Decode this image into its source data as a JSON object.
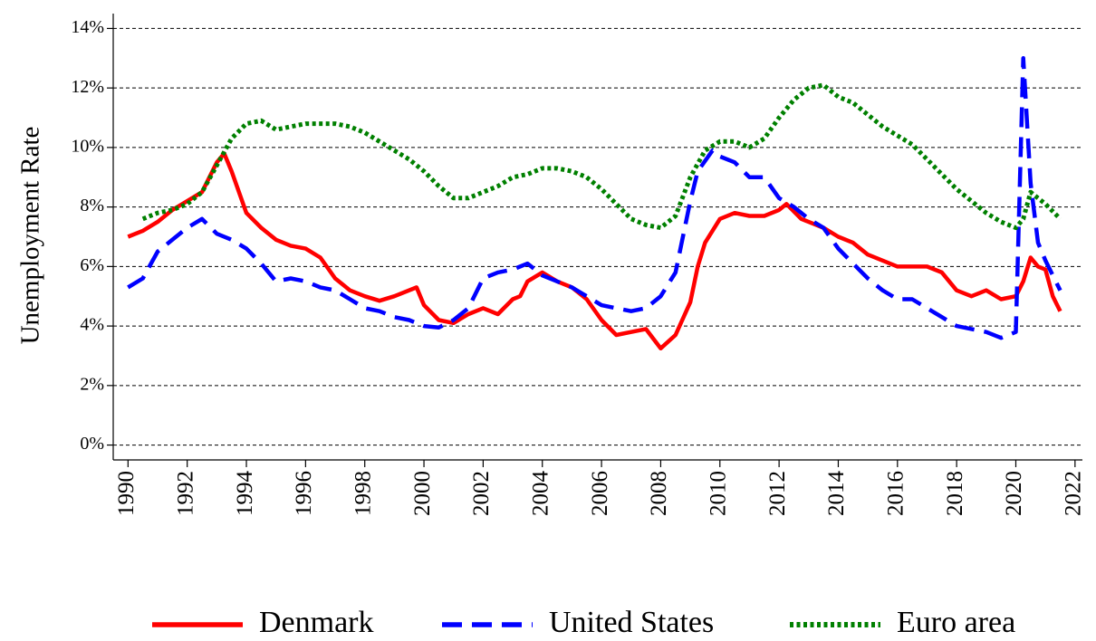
{
  "chart_data": {
    "type": "line",
    "y_label": "Unemployment Rate",
    "xlim": [
      1989.5,
      2022.25
    ],
    "xticks": [
      1990,
      1992,
      1994,
      1996,
      1998,
      2000,
      2002,
      2004,
      2006,
      2008,
      2010,
      2012,
      2014,
      2016,
      2018,
      2020,
      2022
    ],
    "ylim": [
      -0.5,
      14.5
    ],
    "yticks": [
      {
        "value": 0,
        "label": "0%"
      },
      {
        "value": 2,
        "label": "2%"
      },
      {
        "value": 4,
        "label": "4%"
      },
      {
        "value": 6,
        "label": "6%"
      },
      {
        "value": 8,
        "label": "8%"
      },
      {
        "value": 10,
        "label": "10%"
      },
      {
        "value": 12,
        "label": "12%"
      },
      {
        "value": 14,
        "label": "14%"
      }
    ],
    "grid": true,
    "legend": "bottom",
    "series": [
      {
        "name": "Denmark",
        "color": "#ff0000",
        "style": "solid",
        "x": [
          1990,
          1990.5,
          1991,
          1991.5,
          1992,
          1992.5,
          1993,
          1993.25,
          1993.5,
          1994,
          1994.5,
          1995,
          1995.5,
          1996,
          1996.5,
          1997,
          1997.5,
          1998,
          1998.5,
          1999,
          1999.75,
          2000,
          2000.5,
          2001,
          2001.5,
          2002,
          2002.5,
          2003,
          2003.25,
          2003.5,
          2004,
          2004.5,
          2005,
          2005.5,
          2006,
          2006.5,
          2007,
          2007.5,
          2008,
          2008.5,
          2009,
          2009.25,
          2009.5,
          2010,
          2010.5,
          2011,
          2011.5,
          2012,
          2012.25,
          2012.75,
          2013,
          2013.5,
          2014,
          2014.5,
          2015,
          2015.5,
          2016,
          2016.5,
          2017,
          2017.5,
          2018,
          2018.5,
          2019,
          2019.5,
          2020,
          2020.25,
          2020.5,
          2020.75,
          2021,
          2021.25,
          2021.5
        ],
        "values": [
          7.0,
          7.2,
          7.5,
          7.9,
          8.2,
          8.5,
          9.5,
          9.8,
          9.2,
          7.8,
          7.3,
          6.9,
          6.7,
          6.6,
          6.3,
          5.6,
          5.2,
          5.0,
          4.85,
          5.0,
          5.3,
          4.7,
          4.2,
          4.1,
          4.4,
          4.6,
          4.4,
          4.9,
          5.0,
          5.5,
          5.8,
          5.5,
          5.3,
          4.9,
          4.2,
          3.7,
          3.8,
          3.9,
          3.25,
          3.7,
          4.8,
          6.0,
          6.8,
          7.6,
          7.8,
          7.7,
          7.7,
          7.9,
          8.1,
          7.6,
          7.5,
          7.3,
          7.0,
          6.8,
          6.4,
          6.2,
          6.0,
          6.0,
          6.0,
          5.8,
          5.2,
          5.0,
          5.2,
          4.9,
          5.0,
          5.5,
          6.3,
          6.0,
          5.9,
          5.0,
          4.5
        ]
      },
      {
        "name": "United States",
        "color": "#0000ff",
        "style": "dash",
        "x": [
          1990,
          1990.5,
          1991,
          1991.5,
          1992,
          1992.5,
          1993,
          1993.5,
          1994,
          1994.5,
          1995,
          1995.5,
          1996,
          1996.5,
          1997,
          1997.5,
          1998,
          1998.5,
          1999,
          1999.5,
          2000,
          2000.5,
          2001,
          2001.5,
          2002,
          2002.5,
          2003,
          2003.5,
          2004,
          2004.5,
          2005,
          2005.5,
          2006,
          2006.5,
          2007,
          2007.5,
          2008,
          2008.5,
          2009,
          2009.25,
          2009.75,
          2010,
          2010.5,
          2011,
          2011.5,
          2012,
          2012.5,
          2013,
          2013.5,
          2014,
          2014.5,
          2015,
          2015.5,
          2016,
          2016.5,
          2017,
          2017.5,
          2018,
          2018.5,
          2019,
          2019.5,
          2020,
          2020.25,
          2020.5,
          2020.75,
          2021,
          2021.5
        ],
        "values": [
          5.3,
          5.6,
          6.5,
          6.9,
          7.3,
          7.6,
          7.1,
          6.9,
          6.6,
          6.1,
          5.5,
          5.6,
          5.5,
          5.3,
          5.2,
          4.9,
          4.6,
          4.5,
          4.3,
          4.2,
          4.0,
          3.95,
          4.2,
          4.6,
          5.6,
          5.8,
          5.9,
          6.1,
          5.7,
          5.5,
          5.3,
          5.0,
          4.7,
          4.6,
          4.5,
          4.6,
          5.0,
          5.8,
          8.2,
          9.2,
          9.9,
          9.7,
          9.5,
          9.0,
          9.0,
          8.3,
          8.0,
          7.6,
          7.3,
          6.6,
          6.1,
          5.6,
          5.2,
          4.9,
          4.9,
          4.6,
          4.3,
          4.0,
          3.9,
          3.8,
          3.6,
          3.8,
          13.0,
          8.8,
          6.8,
          6.2,
          5.2
        ]
      },
      {
        "name": "Euro area",
        "color": "#008000",
        "style": "dot",
        "x": [
          1990.5,
          1991,
          1991.5,
          1992,
          1992.5,
          1993,
          1993.5,
          1994,
          1994.5,
          1995,
          1995.5,
          1996,
          1996.5,
          1997,
          1997.5,
          1998,
          1998.5,
          1999,
          1999.5,
          2000,
          2000.5,
          2001,
          2001.5,
          2002,
          2002.5,
          2003,
          2003.5,
          2004,
          2004.5,
          2005,
          2005.5,
          2006,
          2006.5,
          2007,
          2007.5,
          2008,
          2008.5,
          2009,
          2009.5,
          2010,
          2010.5,
          2011,
          2011.5,
          2012,
          2012.5,
          2013,
          2013.5,
          2014,
          2014.5,
          2015,
          2015.5,
          2016,
          2016.5,
          2017,
          2017.5,
          2018,
          2018.5,
          2019,
          2019.5,
          2020,
          2020.25,
          2020.5,
          2020.75,
          2021,
          2021.5
        ],
        "values": [
          7.6,
          7.8,
          7.9,
          8.1,
          8.5,
          9.4,
          10.3,
          10.8,
          10.9,
          10.6,
          10.7,
          10.8,
          10.8,
          10.8,
          10.7,
          10.5,
          10.2,
          9.9,
          9.6,
          9.2,
          8.7,
          8.3,
          8.3,
          8.5,
          8.7,
          9.0,
          9.1,
          9.3,
          9.3,
          9.2,
          9.0,
          8.6,
          8.1,
          7.6,
          7.4,
          7.3,
          7.7,
          9.0,
          9.9,
          10.2,
          10.2,
          10.0,
          10.3,
          11.0,
          11.6,
          12.0,
          12.1,
          11.7,
          11.5,
          11.1,
          10.7,
          10.4,
          10.1,
          9.6,
          9.1,
          8.6,
          8.2,
          7.8,
          7.5,
          7.3,
          7.6,
          8.5,
          8.3,
          8.1,
          7.6
        ]
      }
    ]
  }
}
